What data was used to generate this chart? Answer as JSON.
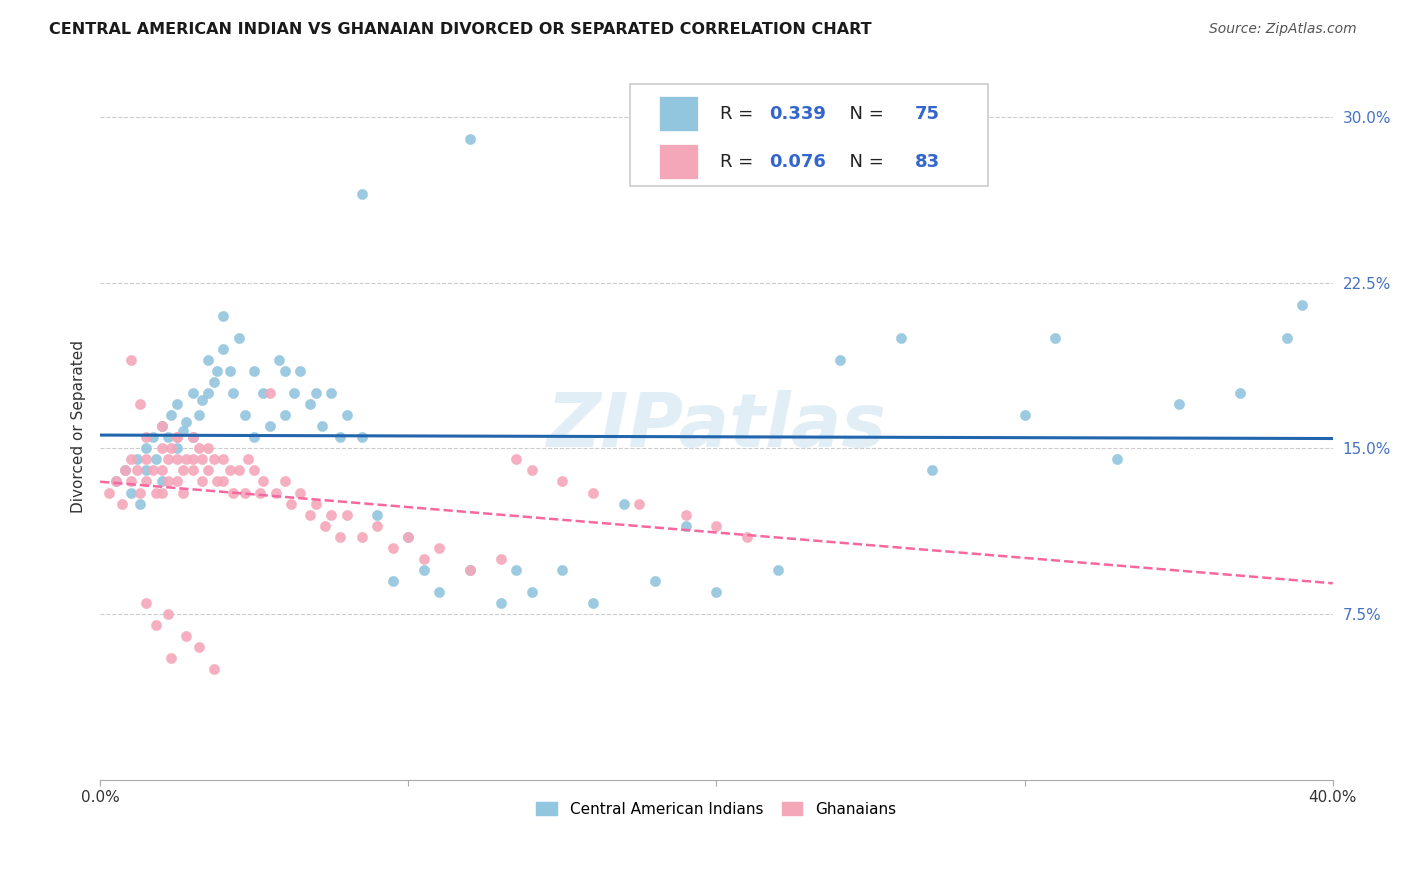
{
  "title": "CENTRAL AMERICAN INDIAN VS GHANAIAN DIVORCED OR SEPARATED CORRELATION CHART",
  "source": "Source: ZipAtlas.com",
  "ylabel": "Divorced or Separated",
  "xlim": [
    0.0,
    0.4
  ],
  "ylim": [
    0.0,
    0.32
  ],
  "yticks": [
    0.075,
    0.15,
    0.225,
    0.3
  ],
  "yticklabels": [
    "7.5%",
    "15.0%",
    "22.5%",
    "30.0%"
  ],
  "xticks": [
    0.0,
    0.1,
    0.2,
    0.3,
    0.4
  ],
  "xticklabels": [
    "0.0%",
    "",
    "",
    "",
    "40.0%"
  ],
  "blue_color": "#92c5de",
  "pink_color": "#f4a7b9",
  "blue_line_color": "#2166ac",
  "pink_line_color": "#f768a1",
  "watermark": "ZIPatlas",
  "R_blue": "0.339",
  "N_blue": "75",
  "R_pink": "0.076",
  "N_pink": "83",
  "legend_color": "#3366cc",
  "blue_x": [
    0.005,
    0.008,
    0.01,
    0.012,
    0.013,
    0.015,
    0.015,
    0.017,
    0.018,
    0.02,
    0.02,
    0.022,
    0.023,
    0.025,
    0.025,
    0.027,
    0.028,
    0.03,
    0.03,
    0.032,
    0.033,
    0.035,
    0.035,
    0.037,
    0.038,
    0.04,
    0.04,
    0.042,
    0.043,
    0.045,
    0.047,
    0.05,
    0.05,
    0.053,
    0.055,
    0.058,
    0.06,
    0.06,
    0.063,
    0.065,
    0.068,
    0.07,
    0.072,
    0.075,
    0.078,
    0.08,
    0.085,
    0.09,
    0.095,
    0.1,
    0.105,
    0.11,
    0.12,
    0.13,
    0.135,
    0.14,
    0.15,
    0.16,
    0.17,
    0.18,
    0.19,
    0.2,
    0.22,
    0.24,
    0.26,
    0.27,
    0.3,
    0.31,
    0.33,
    0.35,
    0.37,
    0.385,
    0.39,
    0.12,
    0.085
  ],
  "blue_y": [
    0.135,
    0.14,
    0.13,
    0.145,
    0.125,
    0.15,
    0.14,
    0.155,
    0.145,
    0.16,
    0.135,
    0.155,
    0.165,
    0.15,
    0.17,
    0.158,
    0.162,
    0.155,
    0.175,
    0.165,
    0.172,
    0.175,
    0.19,
    0.18,
    0.185,
    0.195,
    0.21,
    0.185,
    0.175,
    0.2,
    0.165,
    0.185,
    0.155,
    0.175,
    0.16,
    0.19,
    0.185,
    0.165,
    0.175,
    0.185,
    0.17,
    0.175,
    0.16,
    0.175,
    0.155,
    0.165,
    0.155,
    0.12,
    0.09,
    0.11,
    0.095,
    0.085,
    0.095,
    0.08,
    0.095,
    0.085,
    0.095,
    0.08,
    0.125,
    0.09,
    0.115,
    0.085,
    0.095,
    0.19,
    0.2,
    0.14,
    0.165,
    0.2,
    0.145,
    0.17,
    0.175,
    0.2,
    0.215,
    0.29,
    0.265
  ],
  "pink_x": [
    0.003,
    0.005,
    0.007,
    0.008,
    0.01,
    0.01,
    0.012,
    0.013,
    0.015,
    0.015,
    0.015,
    0.017,
    0.018,
    0.02,
    0.02,
    0.02,
    0.022,
    0.022,
    0.023,
    0.025,
    0.025,
    0.025,
    0.027,
    0.027,
    0.028,
    0.03,
    0.03,
    0.032,
    0.033,
    0.033,
    0.035,
    0.035,
    0.037,
    0.038,
    0.04,
    0.04,
    0.042,
    0.043,
    0.045,
    0.047,
    0.048,
    0.05,
    0.052,
    0.053,
    0.055,
    0.057,
    0.06,
    0.062,
    0.065,
    0.068,
    0.07,
    0.073,
    0.075,
    0.078,
    0.08,
    0.085,
    0.09,
    0.095,
    0.1,
    0.105,
    0.11,
    0.12,
    0.13,
    0.135,
    0.14,
    0.15,
    0.16,
    0.175,
    0.19,
    0.2,
    0.21,
    0.01,
    0.013,
    0.02,
    0.025,
    0.03,
    0.015,
    0.022,
    0.018,
    0.028,
    0.032,
    0.023,
    0.037
  ],
  "pink_y": [
    0.13,
    0.135,
    0.125,
    0.14,
    0.145,
    0.135,
    0.14,
    0.13,
    0.145,
    0.135,
    0.155,
    0.14,
    0.13,
    0.15,
    0.14,
    0.13,
    0.145,
    0.135,
    0.15,
    0.145,
    0.135,
    0.155,
    0.14,
    0.13,
    0.145,
    0.155,
    0.14,
    0.15,
    0.145,
    0.135,
    0.15,
    0.14,
    0.145,
    0.135,
    0.145,
    0.135,
    0.14,
    0.13,
    0.14,
    0.13,
    0.145,
    0.14,
    0.13,
    0.135,
    0.175,
    0.13,
    0.135,
    0.125,
    0.13,
    0.12,
    0.125,
    0.115,
    0.12,
    0.11,
    0.12,
    0.11,
    0.115,
    0.105,
    0.11,
    0.1,
    0.105,
    0.095,
    0.1,
    0.145,
    0.14,
    0.135,
    0.13,
    0.125,
    0.12,
    0.115,
    0.11,
    0.19,
    0.17,
    0.16,
    0.155,
    0.145,
    0.08,
    0.075,
    0.07,
    0.065,
    0.06,
    0.055,
    0.05
  ]
}
